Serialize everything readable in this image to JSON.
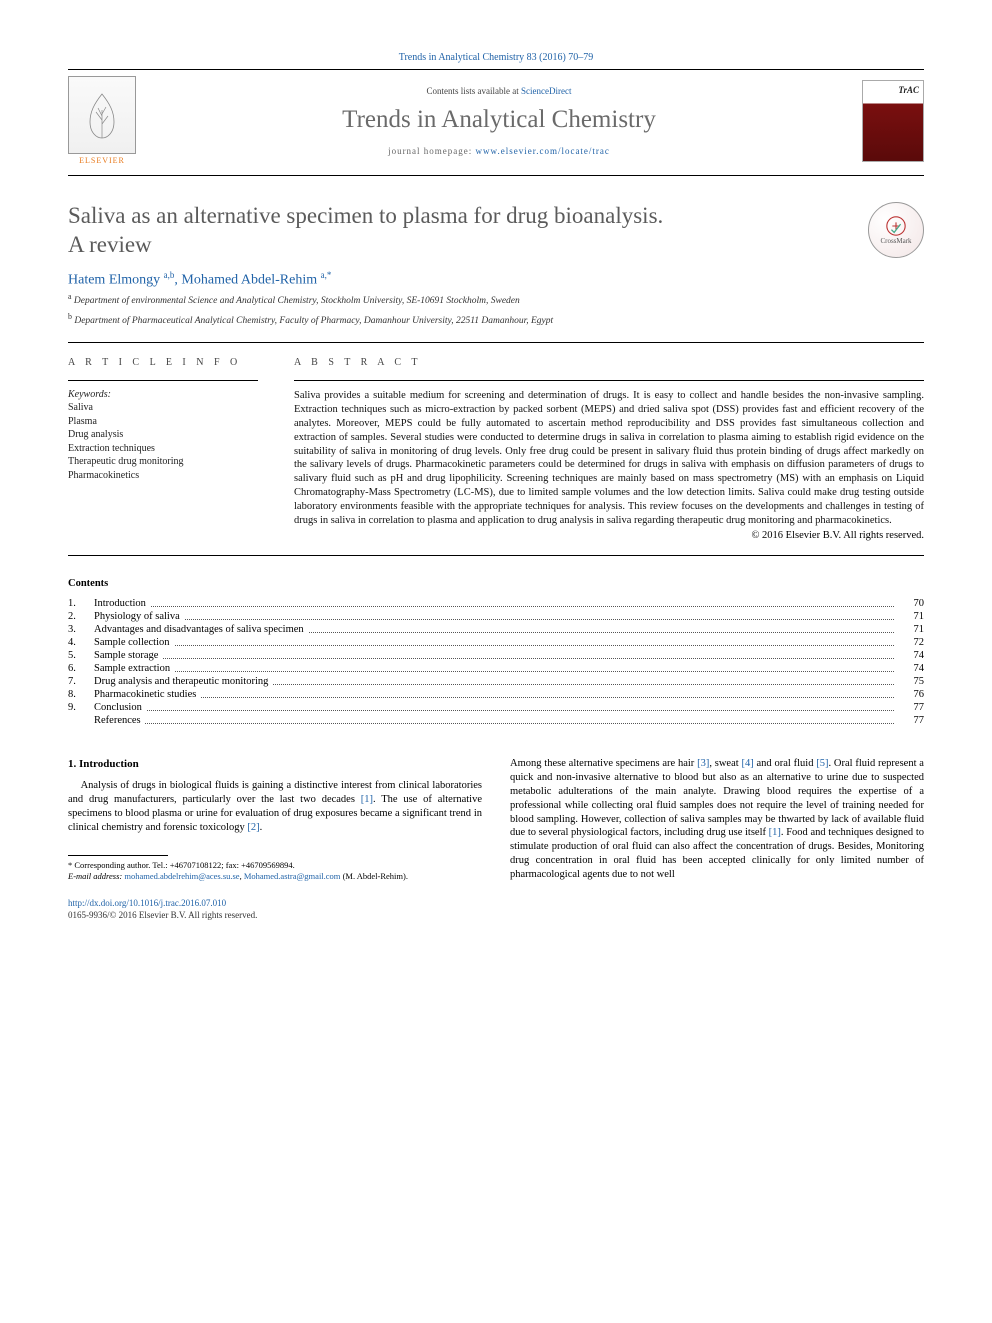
{
  "citation": "Trends in Analytical Chemistry 83 (2016) 70–79",
  "header": {
    "contents_prefix": "Contents lists available at ",
    "contents_link": "ScienceDirect",
    "journal": "Trends in Analytical Chemistry",
    "homepage_prefix": "journal homepage: ",
    "homepage_url": "www.elsevier.com/locate/trac",
    "publisher_logo_label": "ELSEVIER",
    "cover_label": "TrAC"
  },
  "crossmark_label": "CrossMark",
  "title_line1": "Saliva as an alternative specimen to plasma for drug bioanalysis.",
  "title_line2": "A review",
  "authors_html_parts": {
    "a1_name": "Hatem Elmongy",
    "a1_sup": "a,b",
    "sep": ", ",
    "a2_name": "Mohamed Abdel-Rehim",
    "a2_sup": "a,",
    "corr_mark": "*"
  },
  "affiliations": [
    {
      "sup": "a",
      "text": " Department of environmental Science and Analytical Chemistry, Stockholm University, SE-10691 Stockholm, Sweden"
    },
    {
      "sup": "b",
      "text": " Department of Pharmaceutical Analytical Chemistry, Faculty of Pharmacy, Damanhour University, 22511 Damanhour, Egypt"
    }
  ],
  "article_info_head": "A R T I C L E   I N F O",
  "abstract_head": "A B S T R A C T",
  "keywords_label": "Keywords:",
  "keywords": [
    "Saliva",
    "Plasma",
    "Drug analysis",
    "Extraction techniques",
    "Therapeutic drug monitoring",
    "Pharmacokinetics"
  ],
  "abstract_text": "Saliva provides a suitable medium for screening and determination of drugs. It is easy to collect and handle besides the non-invasive sampling. Extraction techniques such as micro-extraction by packed sorbent (MEPS) and dried saliva spot (DSS) provides fast and efficient recovery of the analytes. Moreover, MEPS could be fully automated to ascertain method reproducibility and DSS provides fast simultaneous collection and extraction of samples. Several studies were conducted to determine drugs in saliva in correlation to plasma aiming to establish rigid evidence on the suitability of saliva in monitoring of drug levels. Only free drug could be present in salivary fluid thus protein binding of drugs affect markedly on the salivary levels of drugs. Pharmacokinetic parameters could be determined for drugs in saliva with emphasis on diffusion parameters of drugs to salivary fluid such as pH and drug lipophilicity. Screening techniques are mainly based on mass spectrometry (MS) with an emphasis on Liquid Chromatography-Mass Spectrometry (LC-MS), due to limited sample volumes and the low detection limits. Saliva could make drug testing outside laboratory environments feasible with the appropriate techniques for analysis. This review focuses on the developments and challenges in testing of drugs in saliva in correlation to plasma and application to drug analysis in saliva regarding therapeutic drug monitoring and pharmacokinetics.",
  "copyright": "© 2016 Elsevier B.V. All rights reserved.",
  "contents_title": "Contents",
  "toc": [
    {
      "n": "1.",
      "t": "Introduction",
      "p": "70"
    },
    {
      "n": "2.",
      "t": "Physiology of saliva",
      "p": "71"
    },
    {
      "n": "3.",
      "t": "Advantages and disadvantages of saliva specimen",
      "p": "71"
    },
    {
      "n": "4.",
      "t": "Sample collection",
      "p": "72"
    },
    {
      "n": "5.",
      "t": "Sample storage",
      "p": "74"
    },
    {
      "n": "6.",
      "t": "Sample extraction",
      "p": "74"
    },
    {
      "n": "7.",
      "t": "Drug analysis and therapeutic monitoring",
      "p": "75"
    },
    {
      "n": "8.",
      "t": "Pharmacokinetic studies",
      "p": "76"
    },
    {
      "n": "9.",
      "t": "Conclusion",
      "p": "77"
    },
    {
      "n": "",
      "t": "References",
      "p": "77"
    }
  ],
  "intro_title": "1.  Introduction",
  "intro_para1_a": "Analysis of drugs in biological fluids is gaining a distinctive interest from clinical laboratories and drug manufacturers, particularly over the last two decades ",
  "intro_ref1": "[1]",
  "intro_para1_b": ". The use of alternative specimens to blood plasma or urine for evaluation of drug exposures became a significant trend in clinical chemistry and forensic toxicology ",
  "intro_ref2": "[2]",
  "intro_para1_c": ".",
  "col2_a": "Among these alternative specimens are hair ",
  "col2_ref3": "[3]",
  "col2_b": ", sweat ",
  "col2_ref4": "[4]",
  "col2_c": " and oral fluid ",
  "col2_ref5": "[5]",
  "col2_d": ". Oral fluid represent a quick and non-invasive alternative to blood but also as an alternative to urine due to suspected metabolic adulterations of the main analyte. Drawing blood requires the expertise of a professional while collecting oral fluid samples does not require the level of training needed for blood sampling. However, collection of saliva samples may be thwarted by lack of available fluid due to several physiological factors, including drug use itself ",
  "col2_ref1b": "[1]",
  "col2_e": ". Food and techniques designed to stimulate production of oral fluid can also affect the concentration of drugs. Besides, Monitoring drug concentration in oral fluid has been accepted clinically for only limited number of pharmacological agents due to not well",
  "footnote": {
    "corr_line": "*  Corresponding author. Tel.: +46707108122; fax: +46709569894.",
    "email_label": "E-mail address: ",
    "email1": "mohamed.abdelrehim@aces.su.se",
    "email_sep": ", ",
    "email2": "Mohamed.astra@gmail.com",
    "email_tail": " (M. Abdel-Rehim)."
  },
  "doi": {
    "url": "http://dx.doi.org/10.1016/j.trac.2016.07.010",
    "issn_line": "0165-9936/© 2016 Elsevier B.V. All rights reserved."
  },
  "colors": {
    "link": "#2163a8",
    "title_gray": "#5b5b5b",
    "orange": "#e87b1f"
  }
}
